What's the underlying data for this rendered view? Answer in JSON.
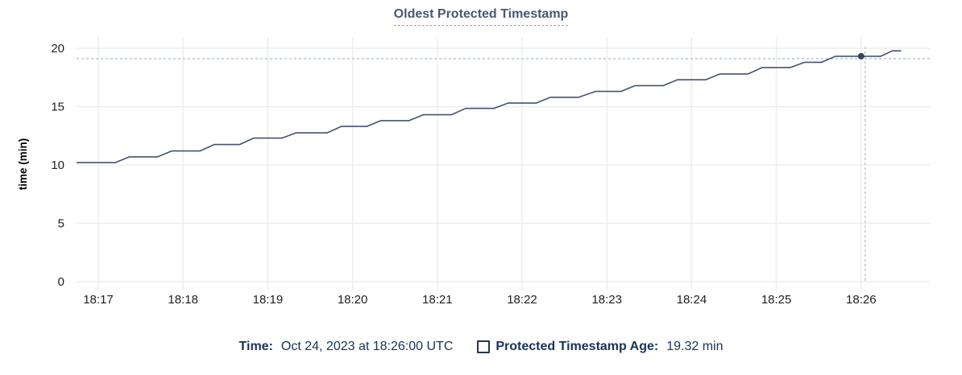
{
  "chart_data": {
    "type": "line",
    "title": "Oldest Protected Timestamp",
    "xlabel": "",
    "ylabel": "time (min)",
    "ylim": [
      0,
      20
    ],
    "yticks": [
      0,
      5,
      10,
      15,
      20
    ],
    "xticks": [
      "18:17",
      "18:18",
      "18:19",
      "18:20",
      "18:21",
      "18:22",
      "18:23",
      "18:24",
      "18:25",
      "18:26"
    ],
    "x_domain": [
      "18:16:45",
      "18:26:50"
    ],
    "grid": "both",
    "legend_position": "bottom",
    "series": [
      {
        "name": "Protected Timestamp Age",
        "unit": "min",
        "points": [
          [
            "18:16:45",
            10.2
          ],
          [
            "18:17:12",
            10.2
          ],
          [
            "18:17:22",
            10.7
          ],
          [
            "18:17:42",
            10.7
          ],
          [
            "18:17:52",
            11.2
          ],
          [
            "18:18:12",
            11.2
          ],
          [
            "18:18:22",
            11.75
          ],
          [
            "18:18:40",
            11.75
          ],
          [
            "18:18:50",
            12.3
          ],
          [
            "18:19:10",
            12.3
          ],
          [
            "18:19:20",
            12.75
          ],
          [
            "18:19:42",
            12.75
          ],
          [
            "18:19:52",
            13.3
          ],
          [
            "18:20:10",
            13.3
          ],
          [
            "18:20:20",
            13.8
          ],
          [
            "18:20:40",
            13.8
          ],
          [
            "18:20:50",
            14.3
          ],
          [
            "18:21:10",
            14.3
          ],
          [
            "18:21:20",
            14.85
          ],
          [
            "18:21:40",
            14.85
          ],
          [
            "18:21:50",
            15.3
          ],
          [
            "18:22:10",
            15.3
          ],
          [
            "18:22:20",
            15.8
          ],
          [
            "18:22:40",
            15.8
          ],
          [
            "18:22:52",
            16.3
          ],
          [
            "18:23:10",
            16.3
          ],
          [
            "18:23:20",
            16.8
          ],
          [
            "18:23:40",
            16.8
          ],
          [
            "18:23:50",
            17.3
          ],
          [
            "18:24:10",
            17.3
          ],
          [
            "18:24:20",
            17.8
          ],
          [
            "18:24:40",
            17.8
          ],
          [
            "18:24:50",
            18.35
          ],
          [
            "18:25:10",
            18.35
          ],
          [
            "18:25:20",
            18.8
          ],
          [
            "18:25:32",
            18.8
          ],
          [
            "18:25:42",
            19.32
          ],
          [
            "18:26:14",
            19.32
          ],
          [
            "18:26:22",
            19.78
          ],
          [
            "18:26:28",
            19.78
          ]
        ]
      }
    ],
    "hover": {
      "time": "18:26:00",
      "value": 19.32
    }
  },
  "legend": {
    "time_label": "Time:",
    "time_value": "Oct 24, 2023 at 18:26:00 UTC",
    "series_label": "Protected Timestamp Age:",
    "series_value": "19.32 min"
  },
  "colors": {
    "line": "#44536d",
    "dot": "#394455",
    "crosshair": "#a9bec9",
    "grid": "#ededed",
    "title": "#475872",
    "footer_text": "#17335a",
    "axis_text": "#1f1f1f",
    "axis_title_text": "#000000"
  }
}
